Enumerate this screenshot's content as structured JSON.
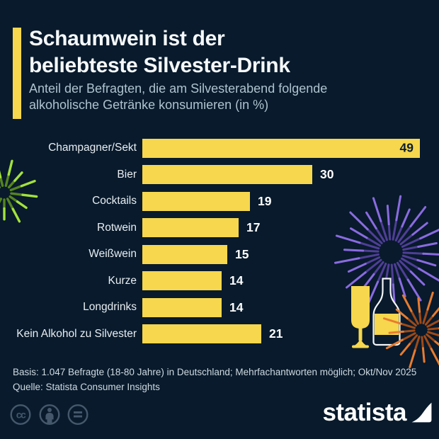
{
  "colors": {
    "background": "#081a2c",
    "bar_yellow": "#f6d74d",
    "title_white": "#f5f8fa",
    "subtitle_gray": "#aec3ce",
    "footer_gray": "#cfdae1",
    "value_dark_on_bar": "#0a1c2e",
    "license_icon_gray": "#45586b",
    "firework_green": "#a3e23c",
    "firework_purple": "#8a6be0",
    "firework_orange": "#e87c2e"
  },
  "header": {
    "title_line1": "Schaumwein ist der",
    "title_line2": "beliebteste Silvester-Drink",
    "subtitle_line1": "Anteil der Befragten, die am Silvesterabend folgende",
    "subtitle_line2": "alkoholische Getränke konsumieren (in %)"
  },
  "chart_data": {
    "type": "bar",
    "orientation": "horizontal",
    "title": "Schaumwein ist der beliebteste Silvester-Drink",
    "subtitle": "Anteil der Befragten, die am Silvesterabend folgende alkoholische Getränke konsumieren (in %)",
    "unit": "%",
    "xlim": [
      0,
      49
    ],
    "grid": false,
    "legend": false,
    "categories": [
      "Champagner/Sekt",
      "Bier",
      "Cocktails",
      "Rotwein",
      "Weißwein",
      "Kurze",
      "Longdrinks",
      "Kein Alkohol zu Silvester"
    ],
    "values": [
      49,
      30,
      19,
      17,
      15,
      14,
      14,
      21
    ],
    "bar_color": "#f6d74d",
    "value_label_style": "bold, first bar inside in dark navy, others outside in white"
  },
  "footer": {
    "basis": "Basis: 1.047 Befragte (18-80 Jahre) in Deutschland; Mehrfachantworten möglich; Okt/Nov 2025",
    "source": "Quelle: Statista Consumer Insights"
  },
  "branding": {
    "logo_text": "statista",
    "license_icons": [
      "cc-icon",
      "attribution-person-icon",
      "equals-icon"
    ]
  }
}
